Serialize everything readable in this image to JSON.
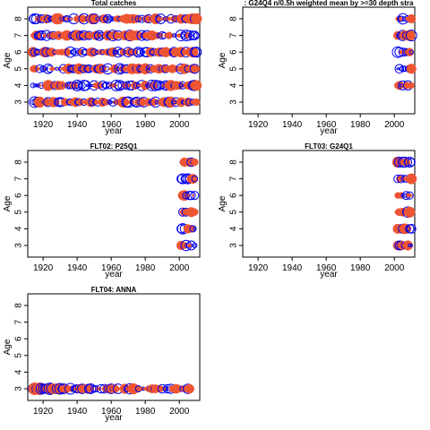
{
  "chart_data": [
    {
      "type": "scatter",
      "title": "Total catches",
      "xlabel": "year",
      "ylabel": "Age",
      "xlim": [
        1911,
        2012
      ],
      "ylim": [
        2.3,
        8.7
      ],
      "xticks": [
        1920,
        1940,
        1960,
        1980,
        2000
      ],
      "yticks": [
        3,
        4,
        5,
        6,
        7,
        8
      ],
      "ages": [
        3,
        4,
        5,
        6,
        7,
        8
      ],
      "years": [
        1914,
        2010
      ],
      "year_step": 1,
      "symbols": {
        "positive": "filled circle",
        "negative": "open circle"
      },
      "colors": {
        "positive": "#ee5533",
        "negative": "#0000ee"
      }
    },
    {
      "type": "scatter",
      "title": ": G24Q4  n/0.5h weighted mean by >=30 depth stra",
      "xlabel": "year",
      "ylabel": "Age",
      "xlim": [
        1911,
        2012
      ],
      "ylim": [
        2.3,
        8.7
      ],
      "xticks": [
        1920,
        1940,
        1960,
        1980,
        2000
      ],
      "yticks": [
        3,
        4,
        5,
        6,
        7,
        8
      ],
      "ages": [
        4,
        5,
        6,
        7,
        8
      ],
      "years": [
        2002,
        2010
      ],
      "year_step": 1,
      "symbols": {
        "positive": "filled circle",
        "negative": "open circle"
      },
      "colors": {
        "positive": "#ee5533",
        "negative": "#0000ee"
      }
    },
    {
      "type": "scatter",
      "title": "FLT02: P25Q1",
      "xlabel": "year",
      "ylabel": "Age",
      "xlim": [
        1911,
        2012
      ],
      "ylim": [
        2.3,
        8.7
      ],
      "xticks": [
        1920,
        1940,
        1960,
        1980,
        2000
      ],
      "yticks": [
        3,
        4,
        5,
        6,
        7,
        8
      ],
      "ages": [
        3,
        4,
        5,
        6,
        7,
        8
      ],
      "years": [
        2001,
        2009
      ],
      "year_step": 1,
      "symbols": {
        "positive": "filled circle",
        "negative": "open circle"
      },
      "colors": {
        "positive": "#ee5533",
        "negative": "#0000ee"
      }
    },
    {
      "type": "scatter",
      "title": "FLT03:       G24Q1",
      "xlabel": "year",
      "ylabel": "Age",
      "xlim": [
        1911,
        2012
      ],
      "ylim": [
        2.3,
        8.7
      ],
      "xticks": [
        1920,
        1940,
        1960,
        1980,
        2000
      ],
      "yticks": [
        3,
        4,
        5,
        6,
        7,
        8
      ],
      "ages": [
        3,
        4,
        5,
        6,
        7,
        8
      ],
      "years": [
        2002,
        2010
      ],
      "year_step": 1,
      "symbols": {
        "positive": "filled circle",
        "negative": "open circle"
      },
      "colors": {
        "positive": "#ee5533",
        "negative": "#0000ee"
      }
    },
    {
      "type": "scatter",
      "title": "FLT04: ANNA",
      "xlabel": "year",
      "ylabel": "Age",
      "xlim": [
        1911,
        2012
      ],
      "ylim": [
        2.3,
        8.7
      ],
      "xticks": [
        1920,
        1940,
        1960,
        1980,
        2000
      ],
      "yticks": [
        3,
        4,
        5,
        6,
        7,
        8
      ],
      "ages": [
        3
      ],
      "years": [
        1914,
        2006
      ],
      "year_step": 1,
      "symbols": {
        "positive": "filled circle",
        "negative": "open circle"
      },
      "colors": {
        "positive": "#ee5533",
        "negative": "#0000ee"
      }
    }
  ]
}
